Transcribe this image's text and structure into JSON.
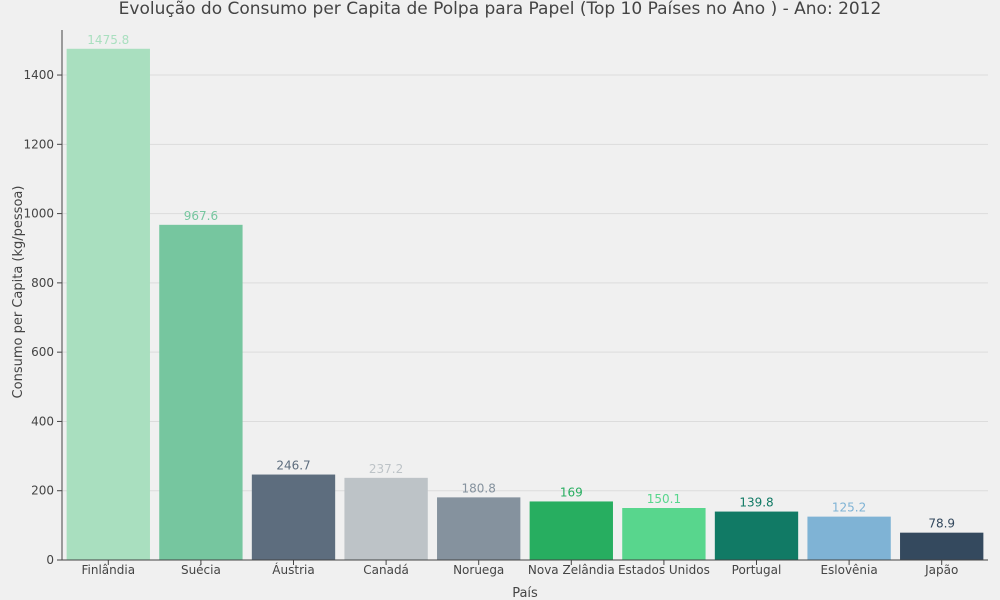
{
  "chart_data": {
    "type": "bar",
    "title": "Evolução do Consumo per Capita de Polpa para Papel (Top 10 Países no Ano ) - Ano: 2012",
    "xlabel": "País",
    "ylabel": "Consumo per Capita (kg/pessoa)",
    "ylim": [
      0,
      1530
    ],
    "yticks": [
      0,
      200,
      400,
      600,
      800,
      1000,
      1200,
      1400
    ],
    "grid": true,
    "categories": [
      "Finlândia",
      "Suécia",
      "Áustria",
      "Canadá",
      "Noruega",
      "Nova Zelândia",
      "Estados Unidos",
      "Portugal",
      "Eslovênia",
      "Japão"
    ],
    "values": [
      1475.8,
      967.6,
      246.7,
      237.2,
      180.8,
      169,
      150.1,
      139.8,
      125.2,
      78.9
    ],
    "value_labels": [
      "1475.8",
      "967.6",
      "246.7",
      "237.2",
      "180.8",
      "169",
      "150.1",
      "139.8",
      "125.2",
      "78.9"
    ],
    "colors": [
      "#a9dfbf",
      "#76c69f",
      "#5d6d7e",
      "#bdc3c7",
      "#85929e",
      "#27ae60",
      "#58d68d",
      "#117a65",
      "#7fb3d5",
      "#34495e"
    ],
    "label_colors": [
      "#a9dfbf",
      "#76c69f",
      "#5d6d7e",
      "#bdc3c7",
      "#85929e",
      "#27ae60",
      "#58d68d",
      "#117a65",
      "#7fb3d5",
      "#34495e"
    ]
  }
}
